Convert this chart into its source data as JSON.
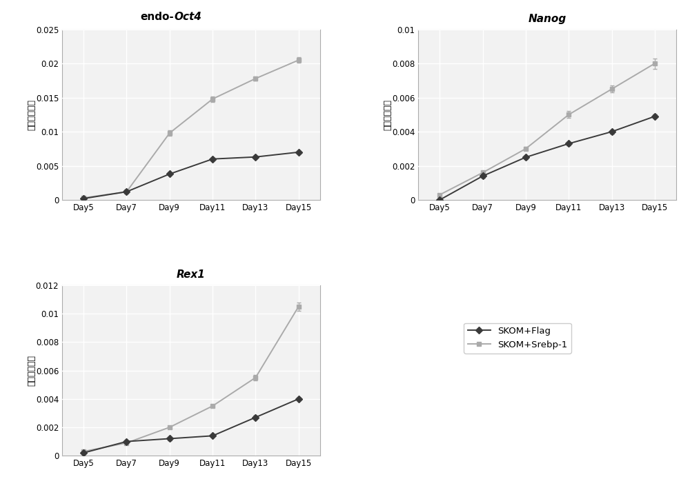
{
  "x_labels": [
    "Day5",
    "Day7",
    "Day9",
    "Day11",
    "Day13",
    "Day15"
  ],
  "x_positions": [
    0,
    1,
    2,
    3,
    4,
    5
  ],
  "oct4": {
    "ylabel": "相对表达水平",
    "ylim": [
      0,
      0.025
    ],
    "yticks": [
      0,
      0.005,
      0.01,
      0.015,
      0.02,
      0.025
    ],
    "ytick_labels": [
      "0",
      "0.005",
      "0.01",
      "0.015",
      "0.02",
      "0.025"
    ],
    "flag_y": [
      0.0002,
      0.0012,
      0.0038,
      0.006,
      0.0063,
      0.007
    ],
    "flag_yerr": [
      0.0001,
      0.0001,
      0.0002,
      0.0002,
      0.0002,
      0.0002
    ],
    "srebp_y": [
      0.0003,
      0.0012,
      0.0098,
      0.0148,
      0.0178,
      0.0205
    ],
    "srebp_yerr": [
      0.0001,
      0.0001,
      0.0004,
      0.0004,
      0.0003,
      0.0004
    ]
  },
  "nanog": {
    "ylabel": "相对表达水平",
    "ylim": [
      0,
      0.01
    ],
    "yticks": [
      0,
      0.002,
      0.004,
      0.006,
      0.008,
      0.01
    ],
    "ytick_labels": [
      "0",
      "0.002",
      "0.004",
      "0.006",
      "0.008",
      "0.01"
    ],
    "flag_y": [
      0.0,
      0.0014,
      0.0025,
      0.0033,
      0.004,
      0.0049
    ],
    "flag_yerr": [
      5e-05,
      0.0001,
      0.0001,
      0.0001,
      0.0001,
      0.0001
    ],
    "srebp_y": [
      0.0003,
      0.0016,
      0.003,
      0.005,
      0.0065,
      0.008
    ],
    "srebp_yerr": [
      5e-05,
      0.0001,
      0.0001,
      0.0002,
      0.0002,
      0.0003
    ]
  },
  "rex1": {
    "ylabel": "相对表达水平",
    "ylim": [
      0,
      0.012
    ],
    "yticks": [
      0,
      0.002,
      0.004,
      0.006,
      0.008,
      0.01,
      0.012
    ],
    "ytick_labels": [
      "0",
      "0.002",
      "0.004",
      "0.006",
      "0.008",
      "0.01",
      "0.012"
    ],
    "flag_y": [
      0.0002,
      0.001,
      0.0012,
      0.0014,
      0.0027,
      0.004
    ],
    "flag_yerr": [
      0.0001,
      0.0001,
      0.0001,
      0.0001,
      0.0001,
      0.0001
    ],
    "srebp_y": [
      0.0003,
      0.0009,
      0.002,
      0.0035,
      0.0055,
      0.0105
    ],
    "srebp_yerr": [
      0.0001,
      0.0001,
      0.0001,
      0.0001,
      0.0002,
      0.0003
    ]
  },
  "color_flag": "#3a3a3a",
  "color_srebp": "#aaaaaa",
  "marker_flag": "D",
  "marker_srebp": "s",
  "markersize": 5,
  "linewidth": 1.4,
  "legend_labels": [
    "SKOM+Flag",
    "SKOM+Srebp-1"
  ],
  "background_color": "#ffffff",
  "plot_bg_color": "#f2f2f2",
  "grid_color": "#ffffff",
  "spine_color": "#aaaaaa"
}
